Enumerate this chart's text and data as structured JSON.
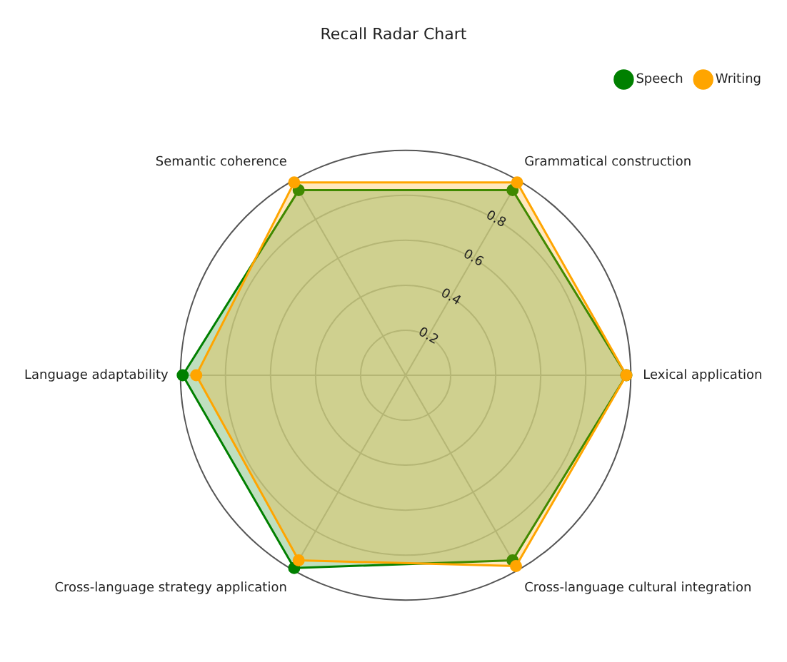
{
  "chart_data": {
    "type": "radar",
    "title": "Recall Radar Chart",
    "categories": [
      "Grammatical construction",
      "Lexical application",
      "Cross-language cultural integration",
      "Cross-language strategy application",
      "Language adaptability",
      "Semantic coherence"
    ],
    "series": [
      {
        "name": "Speech",
        "color": "#008000",
        "values": [
          0.95,
          0.98,
          0.95,
          0.99,
          0.99,
          0.95
        ]
      },
      {
        "name": "Writing",
        "color": "#ffa500",
        "values": [
          0.99,
          0.98,
          0.98,
          0.95,
          0.93,
          0.99
        ]
      }
    ],
    "ylim": [
      0,
      1
    ],
    "yticks": [
      0.2,
      0.4,
      0.6,
      0.8
    ],
    "grid": true,
    "legend": "top right",
    "marker": "circle",
    "line_style": "solid"
  }
}
